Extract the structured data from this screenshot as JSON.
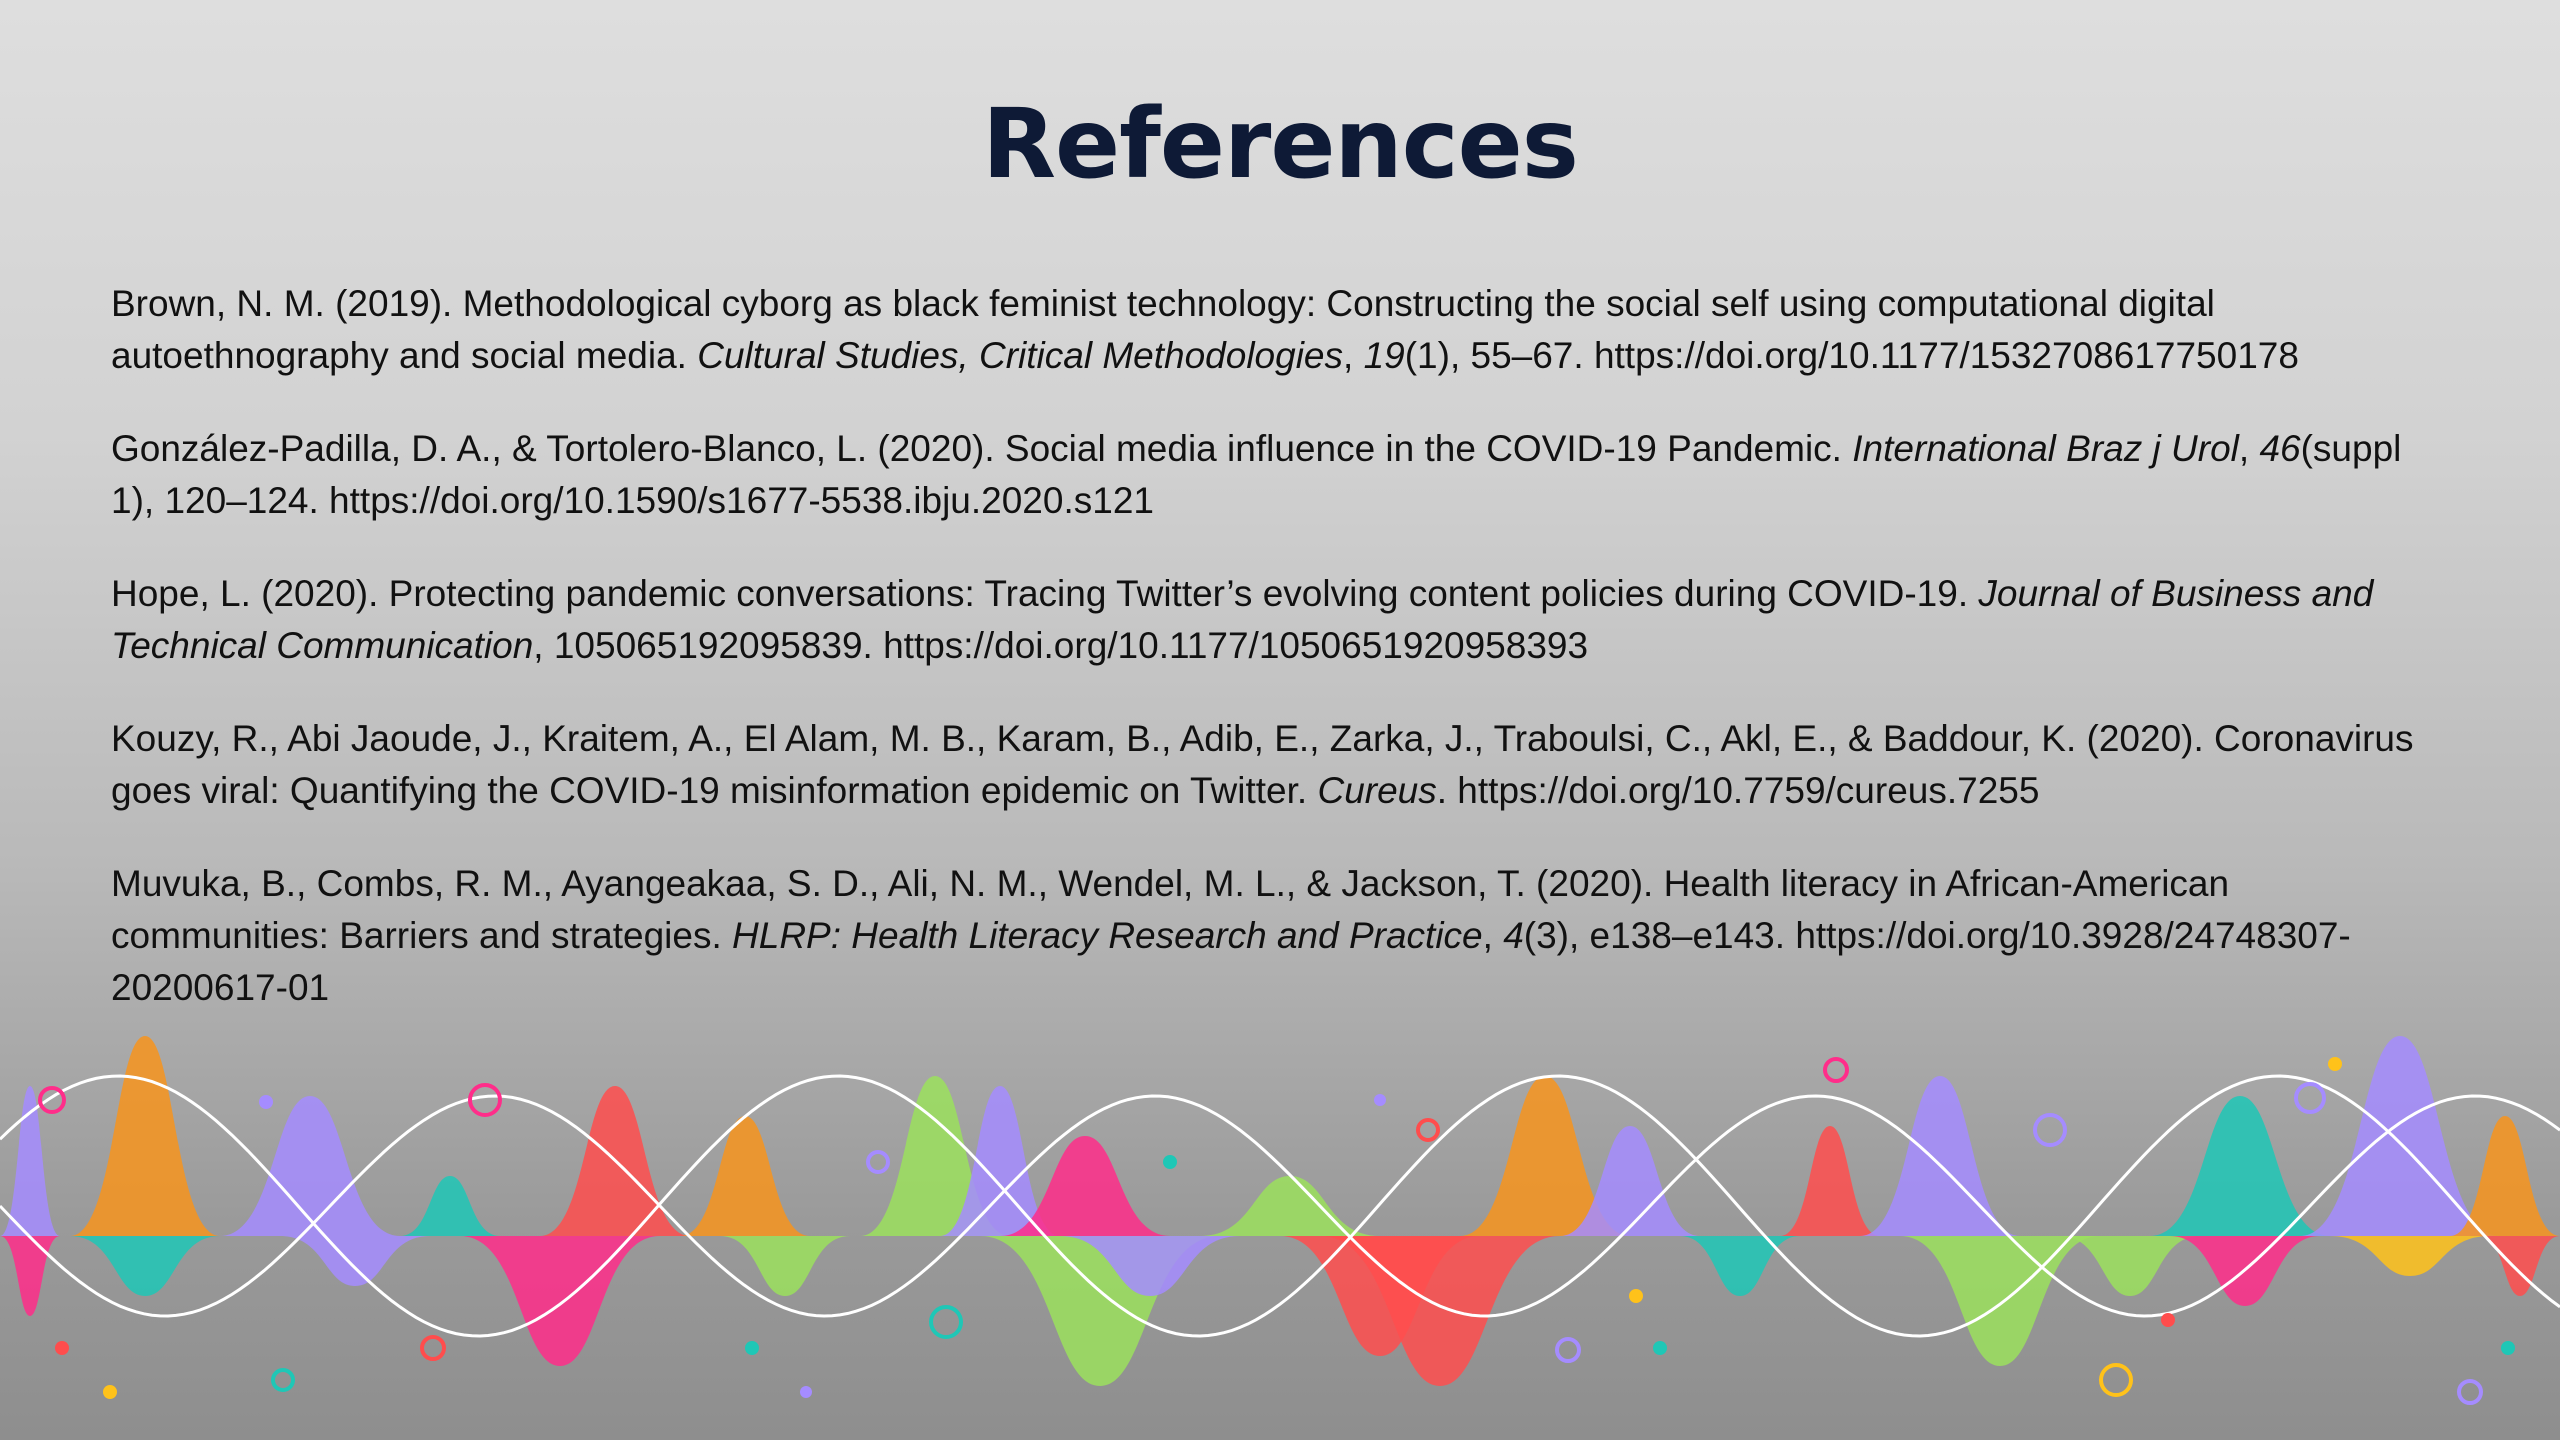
{
  "title": "References",
  "references": [
    {
      "pre": "Brown, N. M. (2019). Methodological cyborg as black feminist technology: Constructing the social self using computational digital autoethnography and social media. ",
      "journal": "Cultural Studies, Critical Methodologies",
      "mid": ", ",
      "volume": "19",
      "post": "(1), 55–67. https://doi.org/10.1177/1532708617750178"
    },
    {
      "pre": "González-Padilla, D. A., & Tortolero-Blanco, L. (2020). Social media influence in the COVID-19 Pandemic. ",
      "journal": "International Braz j Urol",
      "mid": ", ",
      "volume": "46",
      "post": "(suppl 1), 120–124. https://doi.org/10.1590/s1677-5538.ibju.2020.s121"
    },
    {
      "pre": "Hope, L. (2020). Protecting pandemic conversations: Tracing Twitter’s evolving content policies during COVID-19. ",
      "journal": "Journal of Business and Technical Communication",
      "mid": ", 105065192095839. https://doi.org/10.1177/1050651920958393",
      "volume": "",
      "post": ""
    },
    {
      "pre": "Kouzy, R., Abi Jaoude, J., Kraitem, A., El Alam, M. B., Karam, B., Adib, E., Zarka, J., Traboulsi, C., Akl, E., & Baddour, K. (2020). Coronavirus goes viral: Quantifying the COVID-19 misinformation epidemic on Twitter. ",
      "journal": "Cureus",
      "mid": ". https://doi.org/10.7759/cureus.7255",
      "volume": "",
      "post": ""
    },
    {
      "pre": "Muvuka, B., Combs, R. M., Ayangeakaa, S. D., Ali, N. M., Wendel, M. L., & Jackson, T. (2020). Health literacy in African-American communities: Barriers and strategies. ",
      "journal": "HLRP: Health Literacy Research and Practice",
      "mid": ", ",
      "volume": "4",
      "post": "(3), e138–e143. https://doi.org/10.3928/24748307-20200617-01"
    }
  ],
  "decoration": {
    "name": "colorful-sound-waves",
    "colors": [
      "#f7941d",
      "#a58cff",
      "#ff2d8a",
      "#1fc7b6",
      "#9be15d",
      "#ff4d4d",
      "#ffc21a"
    ]
  }
}
